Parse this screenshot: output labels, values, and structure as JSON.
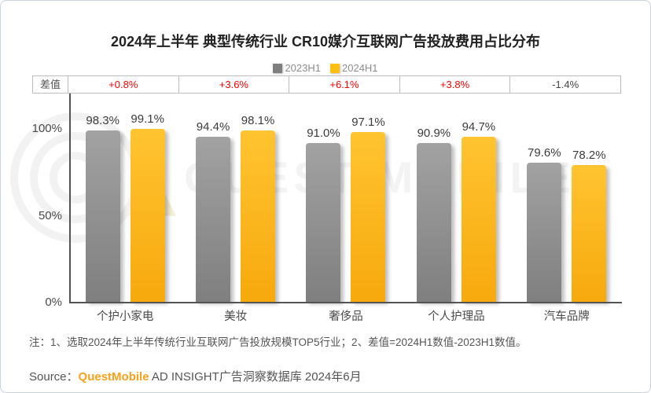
{
  "title": "2024年上半年 典型传统行业 CR10媒介互联网广告投放费用占比分布",
  "legend": {
    "items": [
      {
        "label": "2023H1",
        "color": "#7f7f7f"
      },
      {
        "label": "2024H1",
        "color": "#ffc013"
      }
    ]
  },
  "diff_row": {
    "label": "差值",
    "values": [
      {
        "text": "+0.8%",
        "color": "#fe0000"
      },
      {
        "text": "+3.6%",
        "color": "#fe0000"
      },
      {
        "text": "+6.1%",
        "color": "#fe0000"
      },
      {
        "text": "+3.8%",
        "color": "#fe0000"
      },
      {
        "text": "-1.4%",
        "color": "#454545"
      }
    ]
  },
  "chart_data": {
    "type": "bar",
    "title": "2024年上半年 典型传统行业 CR10媒介互联网广告投放费用占比分布",
    "categories": [
      "个护小家电",
      "美妆",
      "奢侈品",
      "个人护理品",
      "汽车品牌"
    ],
    "series": [
      {
        "name": "2023H1",
        "values": [
          98.3,
          94.4,
          91.0,
          90.9,
          79.6
        ]
      },
      {
        "name": "2024H1",
        "values": [
          99.1,
          98.1,
          97.1,
          94.7,
          78.2
        ]
      }
    ],
    "diff_values": [
      "+0.8%",
      "+3.6%",
      "+6.1%",
      "+3.8%",
      "-1.4%"
    ],
    "ylabel_ticks": [
      "100%",
      "50%",
      "0%"
    ],
    "ylim": [
      0,
      100
    ],
    "value_suffix": "%",
    "legend_position": "top",
    "grid": false
  },
  "yticks": {
    "t100": "100%",
    "t50": "50%",
    "t0": "0%"
  },
  "note": "注：1、选取2024年上半年传统行业互联网广告投放规模TOP5行业；2、差值=2024H1数值-2023H1数值。",
  "source": {
    "prefix": "Source：",
    "brand": "QuestMobile",
    "suffix": " AD INSIGHT广告洞察数据库 2024年6月",
    "brand_color": "#f9a11b"
  },
  "watermark": {
    "text": "QUEST MOBILE"
  }
}
